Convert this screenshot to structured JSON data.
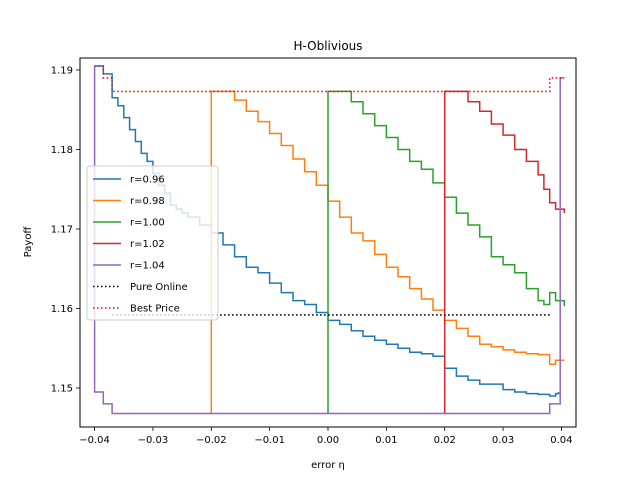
{
  "chart_data": {
    "type": "line",
    "title": "H-Oblivious",
    "xlabel": "error η",
    "ylabel": "Payoff",
    "xlim": [
      -0.0425,
      0.0425
    ],
    "ylim": [
      1.1451,
      1.1915
    ],
    "xticks": [
      -0.04,
      -0.03,
      -0.02,
      -0.01,
      0.0,
      0.01,
      0.02,
      0.03,
      0.04
    ],
    "xtick_labels": [
      "−0.04",
      "−0.03",
      "−0.02",
      "−0.01",
      "0.00",
      "0.01",
      "0.02",
      "0.03",
      "0.04"
    ],
    "yticks": [
      1.15,
      1.16,
      1.17,
      1.18,
      1.19
    ],
    "ytick_labels": [
      "1.15",
      "1.16",
      "1.17",
      "1.18",
      "1.19"
    ],
    "grid": false,
    "legend_position": "center-left",
    "series": [
      {
        "name": "r=0.96",
        "color": "#1f77b4",
        "style": "solid",
        "points": [
          [
            -0.04,
            1.1905
          ],
          [
            -0.0385,
            1.1895
          ],
          [
            -0.037,
            1.1865
          ],
          [
            -0.036,
            1.1855
          ],
          [
            -0.035,
            1.184
          ],
          [
            -0.034,
            1.1825
          ],
          [
            -0.033,
            1.181
          ],
          [
            -0.032,
            1.1795
          ],
          [
            -0.031,
            1.1785
          ],
          [
            -0.03,
            1.177
          ],
          [
            -0.029,
            1.1755
          ],
          [
            -0.028,
            1.1745
          ],
          [
            -0.027,
            1.173
          ],
          [
            -0.026,
            1.1725
          ],
          [
            -0.025,
            1.172
          ],
          [
            -0.024,
            1.1715
          ],
          [
            -0.022,
            1.1705
          ],
          [
            -0.02,
            1.1695
          ],
          [
            -0.018,
            1.168
          ],
          [
            -0.016,
            1.1665
          ],
          [
            -0.014,
            1.1652
          ],
          [
            -0.012,
            1.1645
          ],
          [
            -0.01,
            1.1632
          ],
          [
            -0.008,
            1.162
          ],
          [
            -0.006,
            1.161
          ],
          [
            -0.004,
            1.1605
          ],
          [
            -0.002,
            1.1595
          ],
          [
            0.0,
            1.1585
          ],
          [
            0.002,
            1.158
          ],
          [
            0.004,
            1.1572
          ],
          [
            0.006,
            1.1565
          ],
          [
            0.008,
            1.156
          ],
          [
            0.01,
            1.1555
          ],
          [
            0.012,
            1.155
          ],
          [
            0.014,
            1.1545
          ],
          [
            0.016,
            1.1543
          ],
          [
            0.018,
            1.154
          ],
          [
            0.02,
            1.1525
          ],
          [
            0.022,
            1.1515
          ],
          [
            0.024,
            1.151
          ],
          [
            0.026,
            1.1505
          ],
          [
            0.028,
            1.1505
          ],
          [
            0.03,
            1.1498
          ],
          [
            0.032,
            1.1495
          ],
          [
            0.034,
            1.1493
          ],
          [
            0.036,
            1.1492
          ],
          [
            0.038,
            1.149
          ],
          [
            0.039,
            1.1493
          ],
          [
            0.0395,
            1.1495
          ]
        ]
      },
      {
        "name": "r=0.98",
        "color": "#ff7f0e",
        "style": "solid",
        "points": [
          [
            -0.02,
            1.1468
          ],
          [
            -0.02,
            1.1873
          ],
          [
            -0.018,
            1.1873
          ],
          [
            -0.016,
            1.1862
          ],
          [
            -0.014,
            1.1848
          ],
          [
            -0.012,
            1.1835
          ],
          [
            -0.01,
            1.182
          ],
          [
            -0.008,
            1.1805
          ],
          [
            -0.006,
            1.1788
          ],
          [
            -0.004,
            1.1772
          ],
          [
            -0.002,
            1.1755
          ],
          [
            0.0,
            1.1735
          ],
          [
            0.002,
            1.1715
          ],
          [
            0.004,
            1.1695
          ],
          [
            0.006,
            1.1685
          ],
          [
            0.008,
            1.1668
          ],
          [
            0.01,
            1.1652
          ],
          [
            0.012,
            1.164
          ],
          [
            0.014,
            1.1625
          ],
          [
            0.016,
            1.1612
          ],
          [
            0.018,
            1.1598
          ],
          [
            0.02,
            1.1585
          ],
          [
            0.022,
            1.1575
          ],
          [
            0.024,
            1.1565
          ],
          [
            0.026,
            1.1555
          ],
          [
            0.028,
            1.1552
          ],
          [
            0.03,
            1.1548
          ],
          [
            0.032,
            1.1545
          ],
          [
            0.034,
            1.1543
          ],
          [
            0.036,
            1.1542
          ],
          [
            0.0375,
            1.1542
          ],
          [
            0.038,
            1.153
          ],
          [
            0.039,
            1.1535
          ],
          [
            0.0405,
            1.1535
          ]
        ]
      },
      {
        "name": "r=1.00",
        "color": "#2ca02c",
        "style": "solid",
        "points": [
          [
            0.0,
            1.1468
          ],
          [
            0.0,
            1.1873
          ],
          [
            0.002,
            1.1873
          ],
          [
            0.004,
            1.186
          ],
          [
            0.006,
            1.1845
          ],
          [
            0.008,
            1.183
          ],
          [
            0.01,
            1.1815
          ],
          [
            0.012,
            1.18
          ],
          [
            0.014,
            1.1785
          ],
          [
            0.016,
            1.1775
          ],
          [
            0.018,
            1.1758
          ],
          [
            0.02,
            1.174
          ],
          [
            0.022,
            1.172
          ],
          [
            0.024,
            1.1705
          ],
          [
            0.026,
            1.169
          ],
          [
            0.028,
            1.1665
          ],
          [
            0.03,
            1.1655
          ],
          [
            0.032,
            1.1645
          ],
          [
            0.034,
            1.1625
          ],
          [
            0.036,
            1.161
          ],
          [
            0.037,
            1.1605
          ],
          [
            0.038,
            1.162
          ],
          [
            0.039,
            1.161
          ],
          [
            0.0405,
            1.1603
          ]
        ]
      },
      {
        "name": "r=1.02",
        "color": "#d62728",
        "style": "solid",
        "points": [
          [
            0.02,
            1.1468
          ],
          [
            0.02,
            1.1873
          ],
          [
            0.022,
            1.1873
          ],
          [
            0.024,
            1.186
          ],
          [
            0.026,
            1.1848
          ],
          [
            0.028,
            1.1832
          ],
          [
            0.03,
            1.1818
          ],
          [
            0.032,
            1.18
          ],
          [
            0.034,
            1.1785
          ],
          [
            0.036,
            1.1768
          ],
          [
            0.037,
            1.175
          ],
          [
            0.038,
            1.1733
          ],
          [
            0.039,
            1.1725
          ],
          [
            0.0405,
            1.172
          ]
        ]
      },
      {
        "name": "r=1.04",
        "color": "#9467bd",
        "style": "solid",
        "points": [
          [
            -0.04,
            1.1905
          ],
          [
            -0.04,
            1.1495
          ],
          [
            -0.0385,
            1.1495
          ],
          [
            -0.0385,
            1.148
          ],
          [
            -0.037,
            1.148
          ],
          [
            -0.037,
            1.1468
          ],
          [
            0.038,
            1.1468
          ],
          [
            0.038,
            1.148
          ],
          [
            0.0398,
            1.148
          ],
          [
            0.0398,
            1.189
          ],
          [
            0.0405,
            1.189
          ]
        ]
      },
      {
        "name": "Pure Online",
        "color": "#000000",
        "style": "dotted",
        "points": [
          [
            -0.037,
            1.1592
          ],
          [
            0.038,
            1.1592
          ]
        ]
      },
      {
        "name": "Best Price",
        "color": "#ff0000",
        "style": "dotted",
        "points": [
          [
            -0.04,
            1.1905
          ],
          [
            -0.0385,
            1.189
          ],
          [
            -0.037,
            1.1873
          ],
          [
            0.038,
            1.1873
          ],
          [
            0.038,
            1.189
          ],
          [
            0.0405,
            1.189
          ]
        ]
      }
    ]
  }
}
